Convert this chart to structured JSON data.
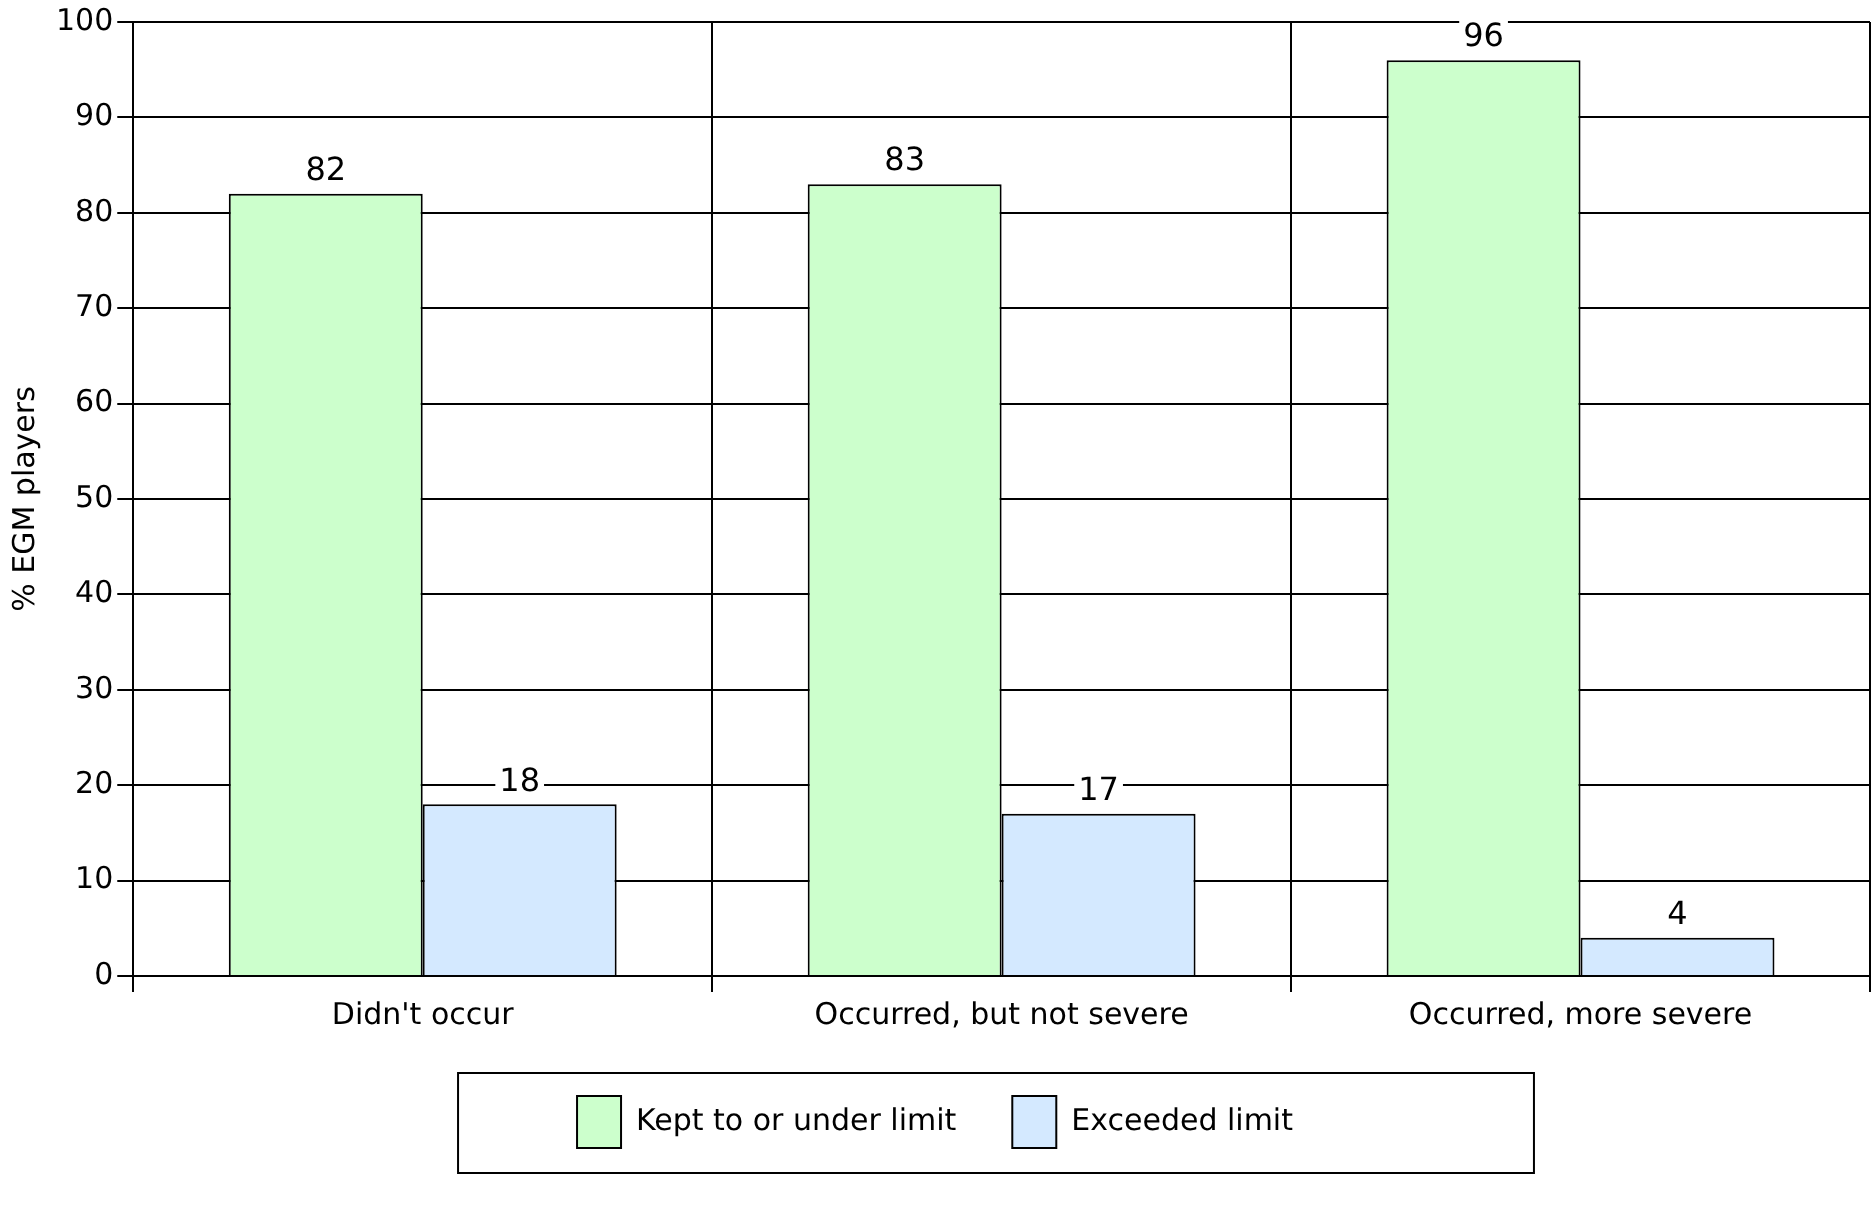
{
  "chart_data": {
    "type": "bar",
    "ylabel": "% EGM players",
    "categories": [
      "Didn't occur",
      "Occurred, but not severe",
      "Occurred, more severe"
    ],
    "series": [
      {
        "name": "Kept to or under limit",
        "color": "#ccffcc",
        "values": [
          82,
          83,
          96
        ]
      },
      {
        "name": "Exceeded limit",
        "color": "#d4e9ff",
        "values": [
          18,
          17,
          4
        ]
      }
    ],
    "ylim": [
      0,
      100
    ],
    "yticks": [
      0,
      10,
      20,
      30,
      40,
      50,
      60,
      70,
      80,
      90,
      100
    ],
    "grid": true,
    "legend": "bottom",
    "data_labels": true
  }
}
